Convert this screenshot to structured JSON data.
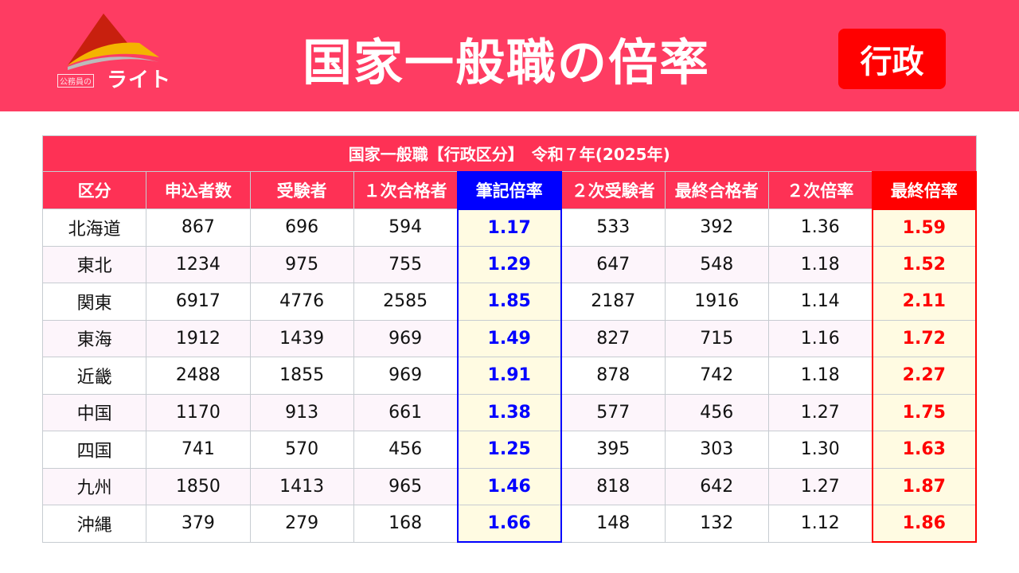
{
  "header": {
    "logo_sub": "公務員の",
    "logo_main": "ライト",
    "title": "国家一般職の倍率",
    "badge": "行政"
  },
  "table": {
    "caption": "国家一般職【行政区分】　令和７年(2025年)",
    "columns": [
      "区分",
      "申込者数",
      "受験者",
      "１次合格者",
      "筆記倍率",
      "２次受験者",
      "最終合格者",
      "２次倍率",
      "最終倍率"
    ],
    "rows": [
      [
        "北海道",
        "867",
        "696",
        "594",
        "1.17",
        "533",
        "392",
        "1.36",
        "1.59"
      ],
      [
        "東北",
        "1234",
        "975",
        "755",
        "1.29",
        "647",
        "548",
        "1.18",
        "1.52"
      ],
      [
        "関東",
        "6917",
        "4776",
        "2585",
        "1.85",
        "2187",
        "1916",
        "1.14",
        "2.11"
      ],
      [
        "東海",
        "1912",
        "1439",
        "969",
        "1.49",
        "827",
        "715",
        "1.16",
        "1.72"
      ],
      [
        "近畿",
        "2488",
        "1855",
        "969",
        "1.91",
        "878",
        "742",
        "1.18",
        "2.27"
      ],
      [
        "中国",
        "1170",
        "913",
        "661",
        "1.38",
        "577",
        "456",
        "1.27",
        "1.75"
      ],
      [
        "四国",
        "741",
        "570",
        "456",
        "1.25",
        "395",
        "303",
        "1.30",
        "1.63"
      ],
      [
        "九州",
        "1850",
        "1413",
        "965",
        "1.46",
        "818",
        "642",
        "1.27",
        "1.87"
      ],
      [
        "沖縄",
        "379",
        "279",
        "168",
        "1.66",
        "148",
        "132",
        "1.12",
        "1.86"
      ]
    ]
  },
  "colors": {
    "brand": "#fe3c62",
    "written_ratio": "#0000ff",
    "final_ratio": "#ff0000"
  }
}
